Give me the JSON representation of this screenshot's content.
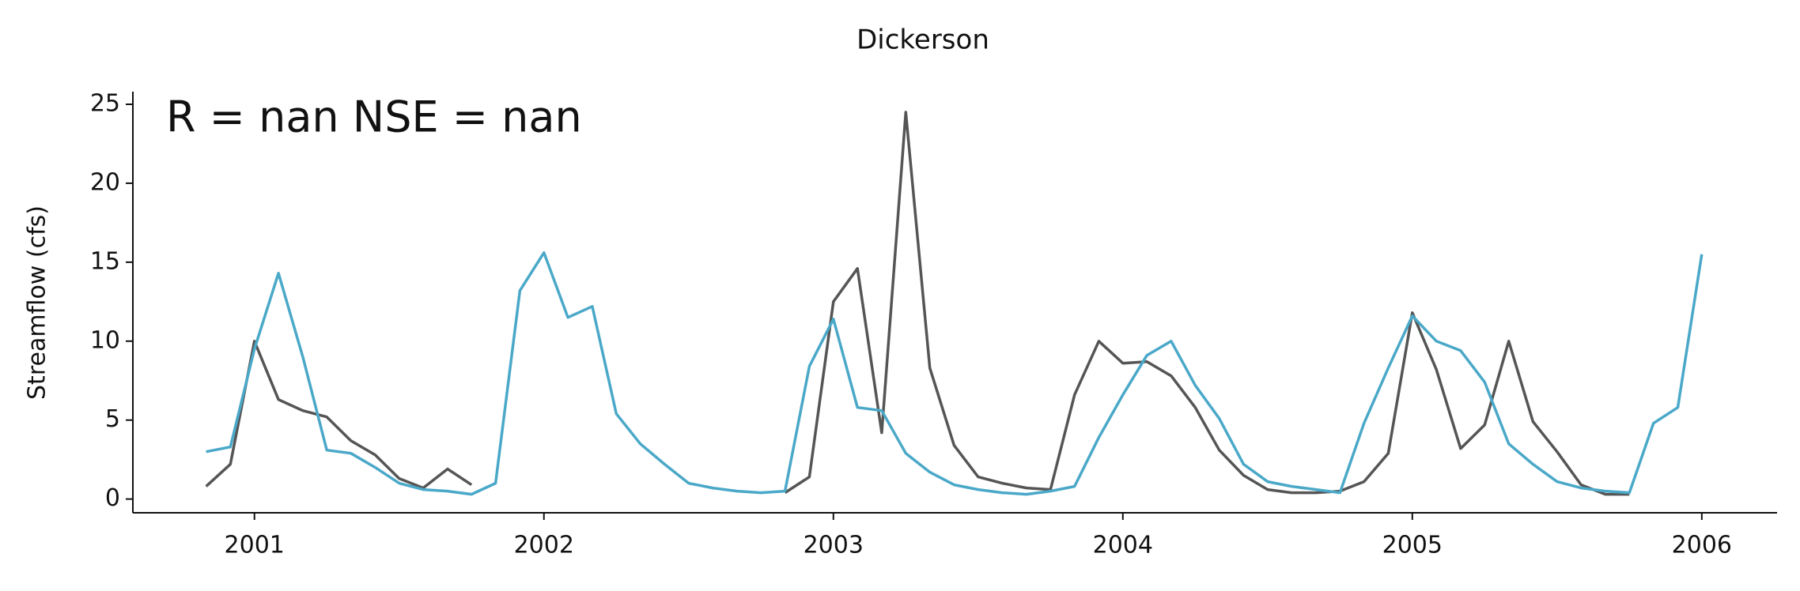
{
  "chart_data": {
    "type": "line",
    "title": "Dickerson",
    "ylabel": "Streamflow (cfs)",
    "annotation": "R = nan  NSE = nan",
    "x": [
      2000.833,
      2000.917,
      2001.0,
      2001.083,
      2001.167,
      2001.25,
      2001.333,
      2001.417,
      2001.5,
      2001.583,
      2001.667,
      2001.75,
      2001.833,
      2001.917,
      2002.0,
      2002.083,
      2002.167,
      2002.25,
      2002.333,
      2002.417,
      2002.5,
      2002.583,
      2002.667,
      2002.75,
      2002.833,
      2002.917,
      2003.0,
      2003.083,
      2003.167,
      2003.25,
      2003.333,
      2003.417,
      2003.5,
      2003.583,
      2003.667,
      2003.75,
      2003.833,
      2003.917,
      2004.0,
      2004.083,
      2004.167,
      2004.25,
      2004.333,
      2004.417,
      2004.5,
      2004.583,
      2004.667,
      2004.75,
      2004.833,
      2004.917,
      2005.0,
      2005.083,
      2005.167,
      2005.25,
      2005.333,
      2005.417,
      2005.5,
      2005.583,
      2005.667,
      2005.75,
      2005.833,
      2005.917,
      2006.0
    ],
    "series": [
      {
        "color": "#555555",
        "values": [
          0.8,
          2.2,
          10.0,
          6.3,
          5.6,
          5.2,
          3.7,
          2.8,
          1.3,
          0.7,
          1.9,
          0.9,
          null,
          null,
          null,
          null,
          null,
          null,
          null,
          null,
          null,
          null,
          null,
          null,
          0.4,
          1.4,
          12.5,
          14.6,
          4.2,
          24.5,
          8.3,
          3.4,
          1.4,
          1.0,
          0.7,
          0.6,
          6.6,
          10.0,
          8.6,
          8.7,
          7.8,
          5.8,
          3.1,
          1.5,
          0.6,
          0.4,
          0.4,
          0.5,
          1.1,
          2.9,
          11.8,
          8.2,
          3.2,
          4.7,
          10.0,
          4.9,
          3.0,
          0.9,
          0.3,
          0.3,
          null,
          null,
          null
        ]
      },
      {
        "color": "#4aa8c8",
        "values": [
          3.0,
          3.3,
          9.5,
          14.3,
          9.0,
          3.1,
          2.9,
          2.0,
          1.0,
          0.6,
          0.5,
          0.3,
          1.0,
          13.2,
          15.6,
          11.5,
          12.2,
          5.4,
          3.5,
          2.2,
          1.0,
          0.7,
          0.5,
          0.4,
          0.5,
          8.4,
          11.4,
          5.8,
          5.6,
          2.9,
          1.7,
          0.9,
          0.6,
          0.4,
          0.3,
          0.5,
          0.8,
          3.9,
          6.6,
          9.1,
          10.0,
          7.2,
          5.1,
          2.2,
          1.1,
          0.8,
          0.6,
          0.4,
          4.8,
          8.3,
          11.6,
          10.0,
          9.4,
          7.4,
          3.5,
          2.2,
          1.1,
          0.7,
          0.5,
          0.4,
          4.8,
          5.8,
          15.5
        ]
      }
    ],
    "xlim": [
      2000.58,
      2006.26
    ],
    "xticks": [
      2001,
      2002,
      2003,
      2004,
      2005,
      2006
    ],
    "ylim": [
      -0.87,
      25.8
    ],
    "yticks": [
      0,
      5,
      10,
      15,
      20,
      25
    ]
  }
}
